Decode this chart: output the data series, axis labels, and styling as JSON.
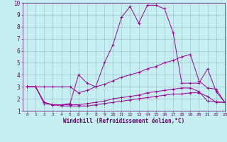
{
  "xlabel": "Windchill (Refroidissement éolien,°C)",
  "xlim": [
    -0.5,
    23
  ],
  "ylim": [
    1,
    10
  ],
  "bg_color": "#c5eef0",
  "line_color": "#990099",
  "grid_color": "#a0b8c8",
  "label_color": "#660066",
  "line2_y": [
    3.0,
    3.0,
    1.6,
    1.5,
    1.5,
    1.6,
    4.0,
    3.3,
    3.0,
    5.0,
    6.5,
    8.8,
    9.7,
    8.3,
    9.8,
    9.8,
    9.5,
    7.5,
    3.3,
    3.3,
    3.3,
    4.5,
    2.6,
    1.7
  ],
  "line1_y": [
    3.0,
    3.0,
    3.0,
    3.0,
    3.0,
    3.0,
    2.5,
    2.7,
    3.0,
    3.2,
    3.5,
    3.8,
    4.0,
    4.2,
    4.5,
    4.7,
    5.0,
    5.2,
    5.5,
    5.7,
    3.5,
    2.9,
    2.8,
    1.7
  ],
  "line3_y": [
    3.0,
    3.0,
    1.7,
    1.5,
    1.5,
    1.5,
    1.5,
    1.6,
    1.7,
    1.8,
    2.0,
    2.1,
    2.2,
    2.3,
    2.5,
    2.6,
    2.7,
    2.8,
    2.9,
    2.9,
    2.6,
    1.8,
    1.75,
    1.7
  ],
  "line4_y": [
    3.0,
    3.0,
    1.7,
    1.5,
    1.4,
    1.4,
    1.4,
    1.4,
    1.5,
    1.6,
    1.7,
    1.8,
    1.9,
    2.0,
    2.1,
    2.2,
    2.3,
    2.4,
    2.4,
    2.5,
    2.5,
    2.2,
    1.7,
    1.7
  ]
}
